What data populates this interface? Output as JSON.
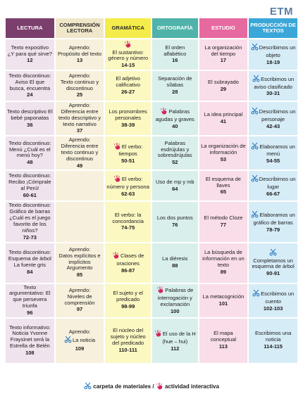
{
  "logo": "ETM",
  "colors": {
    "lectura": {
      "head": "#7b3f6e",
      "head_text": "#ffffff",
      "cell": "#efe3ee"
    },
    "comprension": {
      "head": "#f0e6c9",
      "head_text": "#2b2b2b",
      "cell": "#f6f0dc"
    },
    "gramatica": {
      "head": "#f4ec4a",
      "head_text": "#2b2b2b",
      "cell": "#fbf8c2"
    },
    "ortografia": {
      "head": "#4fb3a9",
      "head_text": "#ffffff",
      "cell": "#d9efec"
    },
    "estudio": {
      "head": "#e66aa0",
      "head_text": "#ffffff",
      "cell": "#f9dde8"
    },
    "produccion": {
      "head": "#3aa7d8",
      "head_text": "#ffffff",
      "cell": "#d6ecf7"
    },
    "scissors_icon": "#2f7cc0",
    "hand_icon": "#d6245a"
  },
  "headers": [
    "LECTURA",
    "COMPRENSIÓN LECTORA",
    "GRAMÁTICA",
    "ORTOGRAFÍA",
    "ESTUDIO",
    "PRODUCCIÓN DE TEXTOS"
  ],
  "rows": [
    [
      {
        "text": "Texto expositivo ¿Y para qué sirve?",
        "num": "12"
      },
      {
        "text": "Propósito del texto",
        "num": "13",
        "pre": "Aprendo:"
      },
      {
        "text": "El sustantivo: género y número",
        "num": "14-15",
        "icon": "hand-icon",
        "icon_pos": "top"
      },
      {
        "text": "El orden alfabético",
        "num": "16"
      },
      {
        "text": "La organización del tiempo",
        "num": "17"
      },
      {
        "text": "Describimos un objeto",
        "num": "18-19",
        "icon": "scissors-icon",
        "icon_pos": "inline"
      }
    ],
    [
      {
        "text": "Texto discontinuo: Aviso El que busca, encuentra",
        "num": "24"
      },
      {
        "text": "Texto continuo y discontinuo",
        "num": "25",
        "pre": "Aprendo:"
      },
      {
        "text": "El adjetivo calificativo",
        "num": "26-27"
      },
      {
        "text": "Separación de sílabas",
        "num": "28"
      },
      {
        "text": "El subrayado",
        "num": "29"
      },
      {
        "text": "Escribimos un aviso clasificado",
        "num": "30-31",
        "icon": "scissors-icon",
        "icon_pos": "inline"
      }
    ],
    [
      {
        "text": "Texto descriptivo El bebé paponatas",
        "num": "36"
      },
      {
        "text": "Diferencia entre texto descriptivo y texto narrativo",
        "num": "37",
        "pre": "Aprendo:"
      },
      {
        "text": "Los pronombres personales",
        "num": "38-39"
      },
      {
        "text": "Palabras agudas y graves",
        "num": "40",
        "icon": "hand-icon",
        "icon_pos": "inline"
      },
      {
        "text": "La idea principal",
        "num": "41"
      },
      {
        "text": "Describimos un personaje",
        "num": "42-43",
        "icon": "scissors-icon",
        "icon_pos": "inline"
      }
    ],
    [
      {
        "text": "Texto discontinuo: Menú ¿Cuál es el menú hoy?",
        "num": "48"
      },
      {
        "text": "Diferencia entre texto continuo y discontinuo",
        "num": "49",
        "pre": "Aprendo:"
      },
      {
        "text": "El verbo: tiempos",
        "num": "50-51",
        "icon": "hand-icon",
        "icon_pos": "inline"
      },
      {
        "text": "Palabras esdrújulas y sobresdrújulas",
        "num": "52"
      },
      {
        "text": "La organización de información",
        "num": "53"
      },
      {
        "text": "Elaboramos un menú",
        "num": "54-55",
        "icon": "scissors-icon",
        "icon_pos": "inline"
      }
    ],
    [
      {
        "text": "Texto discontinuo: Recibo ¡Cómprale al Perú!",
        "num": "60-61"
      },
      {
        "text": "",
        "num": ""
      },
      {
        "text": "El verbo: número y persona",
        "num": "62-63",
        "icon": "hand-icon",
        "icon_pos": "inline"
      },
      {
        "text": "Uso de mp y mb",
        "num": "64"
      },
      {
        "text": "El esquema de llaves",
        "num": "65"
      },
      {
        "text": "Describimos un lugar",
        "num": "66-67",
        "icon": "scissors-icon",
        "icon_pos": "inline"
      }
    ],
    [
      {
        "text": "Texto discontinuo: Gráfico de barras ¿Cuál es el juego favorito de los niños?",
        "num": "72-73"
      },
      {
        "text": "",
        "num": ""
      },
      {
        "text": "El verbo: la concordancia",
        "num": "74-75"
      },
      {
        "text": "Los dos puntos",
        "num": "76"
      },
      {
        "text": "El método Cloze",
        "num": "77"
      },
      {
        "text": "Elaboramos un gráfico de barras",
        "num": "78-79",
        "icon": "scissors-icon",
        "icon_pos": "inline"
      }
    ],
    [
      {
        "text": "Texto discontinuo: Esquema de árbol La fuente gris",
        "num": "84"
      },
      {
        "text": "Datos explícitos e implícitos Argumento",
        "num": "85",
        "pre": "Aprendo:"
      },
      {
        "text": "Clases de oraciones",
        "num": "86-87",
        "icon": "hand-icon",
        "icon_pos": "inline"
      },
      {
        "text": "La diéresis",
        "num": "88"
      },
      {
        "text": "La búsqueda de información en un texto",
        "num": "89"
      },
      {
        "text": "Completamos un esquema de árbol",
        "num": "90-91",
        "icon": "scissors-icon",
        "icon_pos": "top"
      }
    ],
    [
      {
        "text": "Texto argumentativo: El que persevera triunfa",
        "num": "96"
      },
      {
        "text": "Niveles de comprensión",
        "num": "97",
        "pre": "Aprendo:"
      },
      {
        "text": "El sujeto y el predicado",
        "num": "98-99"
      },
      {
        "text": "Palabras de interrogación y exclamación",
        "num": "100",
        "icon": "hand-icon",
        "icon_pos": "inline"
      },
      {
        "text": "La metacognición",
        "num": "101"
      },
      {
        "text": "Escribimos un cuento",
        "num": "102-103",
        "icon": "scissors-icon",
        "icon_pos": "inline"
      }
    ],
    [
      {
        "text": "Texto informativo: Noticia Yvonne Fraysinet será la Estrella de Belén",
        "num": "108"
      },
      {
        "text": "La noticia",
        "num": "109",
        "pre": "Aprendo:",
        "icon": "scissors-icon",
        "icon_pos": "inline-pre"
      },
      {
        "text": "El núcleo del sujeto y núcleo del predicado",
        "num": "110-111"
      },
      {
        "text": "El uso de la H (hue – hui)",
        "num": "112",
        "icon": "hand-icon",
        "icon_pos": "inline"
      },
      {
        "text": "El mapa conceptual",
        "num": "113"
      },
      {
        "text": "Escribimos una noticia",
        "num": "114-115"
      }
    ]
  ],
  "legend": {
    "materials_label": "carpeta de materiales /",
    "interactive_label": "actividad interactiva"
  }
}
